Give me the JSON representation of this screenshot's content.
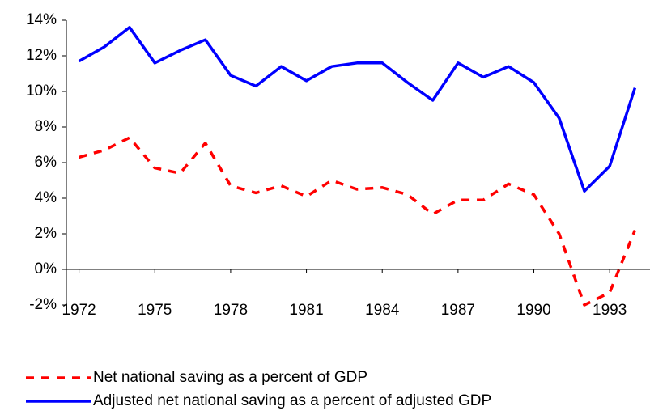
{
  "chart_data": {
    "type": "line",
    "x": [
      1972,
      1973,
      1974,
      1975,
      1976,
      1977,
      1978,
      1979,
      1980,
      1981,
      1982,
      1983,
      1984,
      1985,
      1986,
      1987,
      1988,
      1989,
      1990,
      1991,
      1992,
      1993,
      1994
    ],
    "series": [
      {
        "name": "Net national saving as a percent of GDP",
        "color": "#ff0000",
        "dash": true,
        "values": [
          6.3,
          6.7,
          7.4,
          5.7,
          5.4,
          7.1,
          4.7,
          4.3,
          4.7,
          4.1,
          5.0,
          4.5,
          4.6,
          4.2,
          3.1,
          3.9,
          3.9,
          4.8,
          4.2,
          2.0,
          -2.0,
          -1.3,
          2.2
        ]
      },
      {
        "name": "Adjusted net national saving as a percent of adjusted GDP",
        "color": "#0000ff",
        "dash": false,
        "values": [
          11.7,
          12.5,
          13.6,
          11.6,
          12.3,
          12.9,
          10.9,
          10.3,
          11.4,
          10.6,
          11.4,
          11.6,
          11.6,
          10.5,
          9.5,
          11.6,
          10.8,
          11.4,
          10.5,
          8.5,
          4.4,
          5.8,
          10.2
        ]
      }
    ],
    "xlim": [
      1971.5,
      1994.5
    ],
    "xticks": [
      1972,
      1975,
      1978,
      1981,
      1984,
      1987,
      1990,
      1993
    ],
    "ylim": [
      -2,
      14
    ],
    "yticks": [
      {
        "value": -2,
        "label": "-2%"
      },
      {
        "value": 0,
        "label": "0%"
      },
      {
        "value": 2,
        "label": "2%"
      },
      {
        "value": 4,
        "label": "4%"
      },
      {
        "value": 6,
        "label": "6%"
      },
      {
        "value": 8,
        "label": "8%"
      },
      {
        "value": 10,
        "label": "10%"
      },
      {
        "value": 12,
        "label": "12%"
      },
      {
        "value": 14,
        "label": "14%"
      }
    ],
    "grid": false
  }
}
